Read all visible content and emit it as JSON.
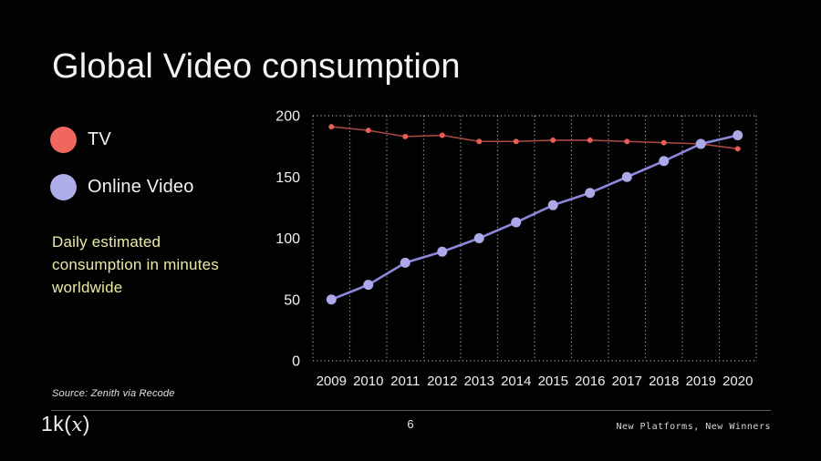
{
  "slide": {
    "title": "Global Video consumption",
    "description": "Daily estimated consumption in minutes worldwide",
    "source": "Source: Zenith via Recode",
    "footer": {
      "logo_prefix": "1k(",
      "logo_x": "x",
      "logo_suffix": ")",
      "page_number": "6",
      "tagline": "New Platforms, New Winners"
    }
  },
  "legend": {
    "items": [
      {
        "label": "TV",
        "color": "#ef675e"
      },
      {
        "label": "Online Video",
        "color": "#aeace9"
      }
    ]
  },
  "chart_data": {
    "type": "line",
    "categories": [
      "2009",
      "2010",
      "2011",
      "2012",
      "2013",
      "2014",
      "2015",
      "2016",
      "2017",
      "2018",
      "2019",
      "2020"
    ],
    "series": [
      {
        "name": "TV",
        "values": [
          191,
          188,
          183,
          184,
          179,
          179,
          180,
          180,
          179,
          178,
          177,
          173
        ],
        "line_color": "#a84843",
        "marker_color": "#e85d54",
        "marker_radius": 3,
        "line_width": 1.6
      },
      {
        "name": "Online Video",
        "values": [
          50,
          62,
          80,
          89,
          100,
          113,
          127,
          137,
          150,
          163,
          177,
          184
        ],
        "line_color": "#8c88dd",
        "marker_color": "#aba9e8",
        "marker_radius": 5.5,
        "line_width": 2.6
      }
    ],
    "title": "Global Video consumption",
    "subtitle": "Daily estimated consumption in minutes worldwide",
    "xlabel": "",
    "ylabel": "",
    "ylim": [
      0,
      200
    ],
    "yticks": [
      0,
      50,
      100,
      150,
      200
    ],
    "grid": "vertical-dotted-cell-borders",
    "grid_color": "#bdbdbd",
    "tick_label_color": "#f0f0f0",
    "legend_position": "left-outside"
  }
}
